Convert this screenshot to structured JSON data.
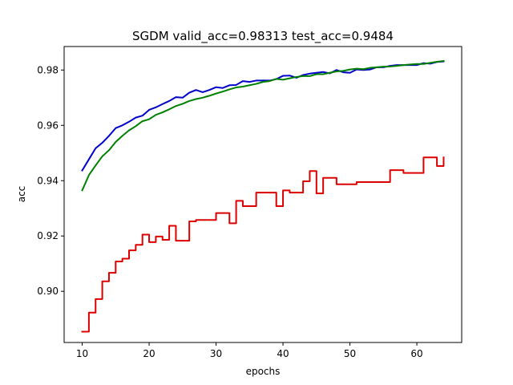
{
  "chart_data": {
    "type": "line",
    "title": "SGDM valid_acc=0.98313  test_acc=0.9484",
    "xlabel": "epochs",
    "ylabel": "acc",
    "xlim": [
      7.3,
      66.7
    ],
    "ylim": [
      0.8815,
      0.9885
    ],
    "x_ticks": [
      10,
      20,
      30,
      40,
      50,
      60
    ],
    "x_tick_labels": [
      "10",
      "20",
      "30",
      "40",
      "50",
      "60"
    ],
    "y_ticks": [
      0.9,
      0.92,
      0.94,
      0.96,
      0.98
    ],
    "y_tick_labels": [
      "0.90",
      "0.92",
      "0.94",
      "0.96",
      "0.98"
    ],
    "grid": false,
    "x": [
      10,
      11,
      12,
      13,
      14,
      15,
      16,
      17,
      18,
      19,
      20,
      21,
      22,
      23,
      24,
      25,
      26,
      27,
      28,
      29,
      30,
      31,
      32,
      33,
      34,
      35,
      36,
      37,
      38,
      39,
      40,
      41,
      42,
      43,
      44,
      45,
      46,
      47,
      48,
      49,
      50,
      51,
      52,
      53,
      54,
      55,
      56,
      57,
      58,
      59,
      60,
      61,
      62,
      63,
      64
    ],
    "series": [
      {
        "color": "#0000cc",
        "step": false,
        "values": [
          0.9437,
          0.9477,
          0.9517,
          0.9537,
          0.9562,
          0.959,
          0.96,
          0.9613,
          0.9628,
          0.9635,
          0.9656,
          0.9665,
          0.9677,
          0.9688,
          0.9702,
          0.97,
          0.9718,
          0.9728,
          0.972,
          0.9728,
          0.9738,
          0.9735,
          0.9745,
          0.9746,
          0.976,
          0.9757,
          0.9762,
          0.9762,
          0.9762,
          0.9767,
          0.9779,
          0.978,
          0.9772,
          0.9782,
          0.9787,
          0.979,
          0.9793,
          0.9788,
          0.98,
          0.9792,
          0.979,
          0.9802,
          0.98,
          0.9802,
          0.981,
          0.981,
          0.9815,
          0.9818,
          0.9818,
          0.9818,
          0.9818,
          0.9825,
          0.9823,
          0.9829,
          0.9831
        ]
      },
      {
        "color": "#008000",
        "step": false,
        "values": [
          0.9365,
          0.942,
          0.9455,
          0.9488,
          0.951,
          0.954,
          0.9562,
          0.9582,
          0.9597,
          0.9615,
          0.9622,
          0.9638,
          0.9647,
          0.9658,
          0.967,
          0.9678,
          0.9688,
          0.9695,
          0.97,
          0.9707,
          0.9715,
          0.9722,
          0.973,
          0.9737,
          0.974,
          0.9745,
          0.975,
          0.9757,
          0.976,
          0.9768,
          0.9765,
          0.977,
          0.9775,
          0.9778,
          0.9778,
          0.9785,
          0.9785,
          0.979,
          0.9795,
          0.9797,
          0.9802,
          0.9805,
          0.9803,
          0.9808,
          0.981,
          0.9812,
          0.9813,
          0.9815,
          0.9818,
          0.982,
          0.9822,
          0.9822,
          0.9826,
          0.983,
          0.9833
        ]
      },
      {
        "color": "#dd0000",
        "step": true,
        "values": [
          0.8854,
          0.8923,
          0.8972,
          0.9036,
          0.9067,
          0.9108,
          0.9118,
          0.9148,
          0.9168,
          0.9205,
          0.9178,
          0.9198,
          0.9186,
          0.9237,
          0.9183,
          0.9183,
          0.9253,
          0.9258,
          0.9258,
          0.9258,
          0.9283,
          0.9283,
          0.9246,
          0.9327,
          0.9308,
          0.9308,
          0.9357,
          0.9357,
          0.9357,
          0.9308,
          0.9365,
          0.9357,
          0.9357,
          0.9398,
          0.9435,
          0.9354,
          0.941,
          0.941,
          0.9387,
          0.9387,
          0.9387,
          0.9395,
          0.9395,
          0.9395,
          0.9395,
          0.9395,
          0.9438,
          0.9438,
          0.9428,
          0.9428,
          0.9428,
          0.9484,
          0.9484,
          0.9453,
          0.9484
        ]
      }
    ]
  }
}
